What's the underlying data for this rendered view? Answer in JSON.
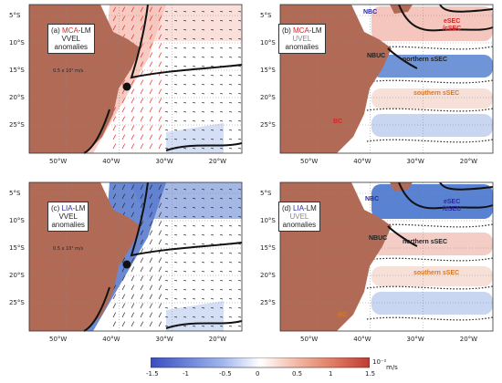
{
  "panels": [
    {
      "id": "a",
      "letter": "(a)",
      "exp": "MCA",
      "suffix": "-LM",
      "var": "VVEL",
      "sub": "anomalies",
      "exp_color": "#d62728",
      "var_color": "#222222",
      "scale": "0.5 x 10¹ m/s",
      "arrow_color": "#d62728"
    },
    {
      "id": "b",
      "letter": "(b)",
      "exp": "MCA",
      "suffix": "-LM",
      "var": "UVEL",
      "sub": "anomalies",
      "exp_color": "#d62728",
      "var_color": "#888888"
    },
    {
      "id": "c",
      "letter": "(c)",
      "exp": "LIA",
      "suffix": "-LM",
      "var": "VVEL",
      "sub": "anomalies",
      "exp_color": "#2c2ca0",
      "var_color": "#222222",
      "scale": "0.5 x 10¹ m/s",
      "arrow_color": "#2c2ca0"
    },
    {
      "id": "d",
      "letter": "(d)",
      "exp": "LIA",
      "suffix": "-LM",
      "var": "UVEL",
      "sub": "anomalies",
      "exp_color": "#2c2ca0",
      "var_color": "#888888"
    }
  ],
  "currents": {
    "top": [
      {
        "name": "NBC",
        "color": "#2a2a9a"
      },
      {
        "name": "eSEC\n/cSEC",
        "color": "#d62728"
      },
      {
        "name": "NBUC",
        "color": "#222222"
      },
      {
        "name": "northern sSEC",
        "color": "#222222"
      },
      {
        "name": "southern sSEC",
        "color": "#d4792a"
      },
      {
        "name": "BC",
        "color": "#d62728"
      }
    ],
    "bottom": [
      {
        "name": "NBC",
        "color": "#2a2a9a"
      },
      {
        "name": "eSEC\n/cSEC",
        "color": "#2a2a9a"
      },
      {
        "name": "NBUC",
        "color": "#222222"
      },
      {
        "name": "northern sSEC",
        "color": "#222222"
      },
      {
        "name": "southern sSEC",
        "color": "#d4792a"
      },
      {
        "name": "BC",
        "color": "#d4792a"
      }
    ]
  },
  "lat_ticks": [
    "5°S",
    "10°S",
    "15°S",
    "20°S",
    "25°S"
  ],
  "lon_ticks": [
    "50°W",
    "40°W",
    "30°W",
    "20°W"
  ],
  "colorbar": {
    "ticks": [
      "-1.5",
      "-1",
      "-0.5",
      "0",
      "0.5",
      "1",
      "1.5"
    ],
    "exponent": "10⁻²",
    "unit": "m/s",
    "colors": [
      "#3b4cc0",
      "#6b82d8",
      "#a2b7ee",
      "#ffffff",
      "#f2b9a6",
      "#e07b62",
      "#c03b32"
    ]
  },
  "colors": {
    "land": "#b06a56",
    "ocean": "#ffffff",
    "contour": "#111111"
  }
}
